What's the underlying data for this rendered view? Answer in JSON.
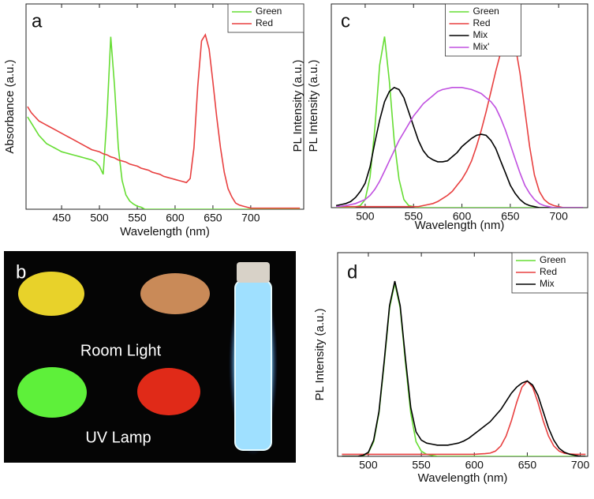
{
  "chart_data": [
    {
      "type": "line",
      "panel": "a",
      "xlabel": "Wavelength (nm)",
      "ylabel": "Absorbance (a.u.)",
      "legend": "upper right",
      "xlim": [
        403,
        770
      ],
      "ylim": [
        0,
        1
      ],
      "xticks": [
        450,
        500,
        550,
        600,
        650,
        700
      ],
      "x": [
        405,
        410,
        415,
        420,
        425,
        430,
        435,
        440,
        445,
        450,
        455,
        460,
        465,
        470,
        475,
        480,
        485,
        490,
        495,
        500,
        505,
        510,
        515,
        520,
        525,
        530,
        535,
        540,
        545,
        550,
        555,
        560,
        565,
        570,
        575,
        580,
        585,
        590,
        595,
        600,
        605,
        610,
        615,
        620,
        625,
        630,
        635,
        640,
        645,
        650,
        655,
        660,
        665,
        670,
        675,
        680,
        685,
        690,
        695,
        700,
        705,
        710,
        715,
        720,
        725,
        730,
        735,
        740,
        745,
        750,
        755,
        760,
        765
      ],
      "series": [
        {
          "name": "Green",
          "color": "#66dd33",
          "values": [
            0.45,
            0.42,
            0.39,
            0.36,
            0.34,
            0.32,
            0.31,
            0.3,
            0.29,
            0.28,
            0.275,
            0.27,
            0.265,
            0.26,
            0.255,
            0.25,
            0.245,
            0.24,
            0.23,
            0.21,
            0.17,
            0.45,
            0.84,
            0.6,
            0.3,
            0.14,
            0.07,
            0.04,
            0.025,
            0.015,
            0.01,
            0,
            0,
            0,
            0,
            0,
            0,
            0,
            0,
            0,
            0,
            0,
            0,
            0,
            0,
            0,
            0,
            0,
            0,
            0,
            0,
            0,
            0,
            0,
            0,
            0,
            0,
            0,
            0,
            0,
            0,
            0,
            0,
            0,
            0,
            0,
            0,
            0,
            0,
            0,
            0,
            0,
            0
          ]
        },
        {
          "name": "Red",
          "color": "#e84040",
          "values": [
            0.5,
            0.47,
            0.45,
            0.43,
            0.42,
            0.41,
            0.4,
            0.39,
            0.38,
            0.37,
            0.36,
            0.35,
            0.34,
            0.33,
            0.32,
            0.31,
            0.3,
            0.29,
            0.285,
            0.28,
            0.27,
            0.265,
            0.255,
            0.25,
            0.24,
            0.235,
            0.23,
            0.22,
            0.215,
            0.21,
            0.2,
            0.195,
            0.19,
            0.18,
            0.175,
            0.17,
            0.16,
            0.155,
            0.15,
            0.145,
            0.14,
            0.135,
            0.13,
            0.15,
            0.3,
            0.6,
            0.82,
            0.85,
            0.78,
            0.62,
            0.45,
            0.3,
            0.18,
            0.1,
            0.06,
            0.03,
            0.02,
            0.015,
            0.01,
            0.005,
            0.005,
            0.005,
            0.005,
            0.005,
            0.005,
            0.005,
            0.005,
            0.005,
            0.005,
            0.005,
            0.005,
            0.005,
            0.005
          ]
        }
      ]
    },
    {
      "type": "line",
      "panel": "c",
      "xlabel": "Wavelength (nm)",
      "ylabel": "PL Intensity (a.u.)",
      "legend": "upper center",
      "xlim": [
        465,
        730
      ],
      "ylim": [
        0,
        1
      ],
      "xticks": [
        500,
        550,
        600,
        650,
        700
      ],
      "x": [
        470,
        475,
        480,
        485,
        490,
        495,
        500,
        505,
        510,
        515,
        520,
        525,
        530,
        535,
        540,
        545,
        550,
        555,
        560,
        565,
        570,
        575,
        580,
        585,
        590,
        595,
        600,
        605,
        610,
        615,
        620,
        625,
        630,
        635,
        640,
        645,
        650,
        655,
        660,
        665,
        670,
        675,
        680,
        685,
        690,
        695,
        700,
        705,
        710,
        715,
        720,
        725
      ],
      "series": [
        {
          "name": "Green",
          "color": "#66dd33",
          "values": [
            0,
            0,
            0,
            0,
            0.004,
            0.01,
            0.04,
            0.15,
            0.39,
            0.7,
            0.84,
            0.62,
            0.33,
            0.14,
            0.04,
            0.01,
            0.005,
            0,
            0,
            0,
            0,
            0,
            0,
            0,
            0,
            0,
            0,
            0,
            0,
            0,
            0,
            0,
            0,
            0,
            0,
            0,
            0,
            0,
            0,
            0,
            0,
            0,
            0,
            0,
            0,
            0,
            0,
            0,
            0,
            0,
            0,
            0
          ]
        },
        {
          "name": "Red",
          "color": "#e84040",
          "values": [
            0.005,
            0.005,
            0.005,
            0.005,
            0.005,
            0.005,
            0.005,
            0.005,
            0.005,
            0.005,
            0.005,
            0.005,
            0.005,
            0.005,
            0.005,
            0.005,
            0.005,
            0.005,
            0.01,
            0.015,
            0.02,
            0.03,
            0.045,
            0.06,
            0.08,
            0.11,
            0.14,
            0.18,
            0.23,
            0.3,
            0.38,
            0.47,
            0.57,
            0.67,
            0.76,
            0.83,
            0.85,
            0.8,
            0.66,
            0.48,
            0.3,
            0.16,
            0.08,
            0.04,
            0.02,
            0.01,
            0.005,
            0,
            0,
            0,
            0,
            0
          ]
        },
        {
          "name": "Mix",
          "color": "#000000",
          "values": [
            0.01,
            0.015,
            0.02,
            0.03,
            0.05,
            0.08,
            0.12,
            0.2,
            0.32,
            0.43,
            0.52,
            0.57,
            0.59,
            0.58,
            0.54,
            0.47,
            0.4,
            0.33,
            0.28,
            0.25,
            0.235,
            0.225,
            0.225,
            0.23,
            0.25,
            0.27,
            0.3,
            0.32,
            0.34,
            0.355,
            0.36,
            0.355,
            0.33,
            0.29,
            0.23,
            0.17,
            0.11,
            0.07,
            0.04,
            0.02,
            0.01,
            0.005,
            0,
            0,
            0,
            0,
            0,
            0,
            0,
            0,
            0,
            0
          ]
        },
        {
          "name": "Mix'",
          "color": "#c050e0",
          "values": [
            0.005,
            0.007,
            0.01,
            0.015,
            0.02,
            0.03,
            0.04,
            0.06,
            0.09,
            0.13,
            0.18,
            0.23,
            0.28,
            0.33,
            0.37,
            0.41,
            0.45,
            0.48,
            0.51,
            0.53,
            0.55,
            0.57,
            0.58,
            0.585,
            0.59,
            0.59,
            0.59,
            0.585,
            0.58,
            0.57,
            0.56,
            0.54,
            0.52,
            0.49,
            0.44,
            0.38,
            0.31,
            0.24,
            0.17,
            0.11,
            0.07,
            0.04,
            0.02,
            0.01,
            0.005,
            0,
            0,
            0,
            0,
            0,
            0,
            0
          ]
        }
      ]
    },
    {
      "type": "line",
      "panel": "d",
      "xlabel": "Wavelength (nm)",
      "ylabel": "PL Intensity (a.u.)",
      "legend": "upper right",
      "xlim": [
        471,
        707
      ],
      "ylim": [
        0,
        1
      ],
      "xticks": [
        500,
        550,
        600,
        650,
        700
      ],
      "x": [
        475,
        480,
        485,
        490,
        495,
        500,
        505,
        510,
        515,
        520,
        525,
        530,
        535,
        540,
        545,
        550,
        555,
        560,
        565,
        570,
        575,
        580,
        585,
        590,
        595,
        600,
        605,
        610,
        615,
        620,
        625,
        630,
        635,
        640,
        645,
        650,
        655,
        660,
        665,
        670,
        675,
        680,
        685,
        690,
        695,
        700,
        705
      ],
      "series": [
        {
          "name": "Green",
          "color": "#66dd33",
          "values": [
            0,
            0,
            0,
            0,
            0.003,
            0.018,
            0.072,
            0.212,
            0.459,
            0.729,
            0.85,
            0.729,
            0.459,
            0.212,
            0.072,
            0.025,
            0.01,
            0.005,
            0,
            0,
            0,
            0,
            0,
            0,
            0,
            0,
            0,
            0,
            0,
            0,
            0,
            0,
            0,
            0,
            0,
            0,
            0,
            0,
            0,
            0,
            0,
            0,
            0,
            0,
            0,
            0,
            0
          ]
        },
        {
          "name": "Red",
          "color": "#e84040",
          "values": [
            0.01,
            0.01,
            0.01,
            0.01,
            0.01,
            0.01,
            0.01,
            0.01,
            0.01,
            0.01,
            0.01,
            0.01,
            0.01,
            0.01,
            0.01,
            0.01,
            0.01,
            0.01,
            0.01,
            0.01,
            0.01,
            0.01,
            0.01,
            0.01,
            0.01,
            0.01,
            0.012,
            0.013,
            0.016,
            0.026,
            0.051,
            0.1,
            0.175,
            0.265,
            0.34,
            0.37,
            0.34,
            0.265,
            0.175,
            0.1,
            0.051,
            0.026,
            0.015,
            0.012,
            0.01,
            0.01,
            0.01
          ]
        },
        {
          "name": "Mix",
          "color": "#000000",
          "values": [
            0,
            0,
            0,
            0,
            0.005,
            0.02,
            0.08,
            0.22,
            0.47,
            0.74,
            0.86,
            0.74,
            0.48,
            0.24,
            0.12,
            0.08,
            0.065,
            0.06,
            0.055,
            0.055,
            0.055,
            0.06,
            0.065,
            0.075,
            0.09,
            0.11,
            0.13,
            0.15,
            0.17,
            0.2,
            0.23,
            0.27,
            0.31,
            0.34,
            0.36,
            0.37,
            0.35,
            0.3,
            0.22,
            0.14,
            0.08,
            0.04,
            0.02,
            0.01,
            0.005,
            0,
            0
          ]
        }
      ]
    }
  ],
  "photo": {
    "label": "b",
    "texts": [
      "Room Light",
      "UV Lamp"
    ]
  }
}
